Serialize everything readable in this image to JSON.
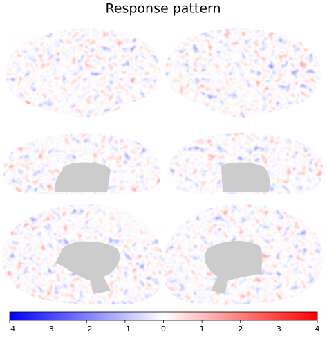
{
  "chart_data": {
    "type": "colorbar",
    "title": "Response pattern",
    "colormap": [
      "#0000ff",
      "#ffffff",
      "#ff0000"
    ],
    "xlim": [
      -4,
      4
    ],
    "xticks": [
      {
        "value": -4,
        "label": "−4"
      },
      {
        "value": -3,
        "label": "−3"
      },
      {
        "value": -2,
        "label": "−2"
      },
      {
        "value": -1,
        "label": "−1"
      },
      0,
      1,
      2,
      3,
      4
    ]
  }
}
